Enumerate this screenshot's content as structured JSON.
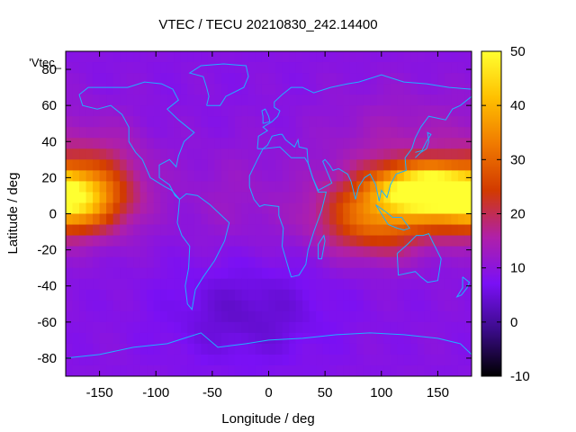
{
  "chart_data": {
    "type": "heatmap",
    "title": "VTEC / TECU 20210830_242.14400",
    "xlabel": "Longitude / deg",
    "ylabel": "Latitude / deg",
    "series_label": "'Vtec_",
    "xlim": [
      -180,
      180
    ],
    "ylim": [
      -90,
      90
    ],
    "x_ticks": [
      -150,
      -100,
      -50,
      0,
      50,
      100,
      150
    ],
    "y_ticks": [
      -80,
      -60,
      -40,
      -20,
      0,
      20,
      40,
      60,
      80
    ],
    "colorbar": {
      "range": [
        -10,
        50
      ],
      "ticks": [
        -10,
        0,
        10,
        20,
        30,
        40,
        50
      ],
      "palette": [
        "#000000",
        "#3b0b8a",
        "#7a10f5",
        "#b020a8",
        "#d23a00",
        "#f07a00",
        "#ffc000",
        "#ffff30"
      ]
    },
    "grid": "off",
    "background_level": 9,
    "features": [
      {
        "name": "pacific-enhancement",
        "lon": -175,
        "lat": 7,
        "peak": 42
      },
      {
        "name": "asia-pacific-enhancement",
        "lon": 135,
        "lat": 14,
        "peak": 42
      },
      {
        "name": "indian-ocean-enhancement",
        "lon": 90,
        "lat": -3,
        "peak": 34
      },
      {
        "name": "south-atlantic-depletion",
        "lon": -10,
        "lat": -55,
        "peak": 5
      }
    ]
  }
}
